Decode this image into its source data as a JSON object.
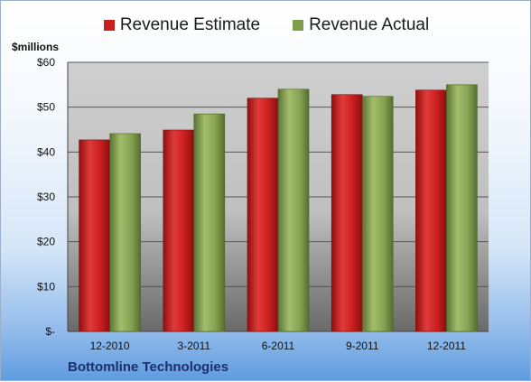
{
  "chart_data": {
    "type": "bar",
    "title": "",
    "unit_label": "$millions",
    "categories": [
      "12-2010",
      "3-2011",
      "6-2011",
      "9-2011",
      "12-2011"
    ],
    "series": [
      {
        "name": "Revenue Estimate",
        "values": [
          42.7,
          44.9,
          52.0,
          52.8,
          53.8
        ],
        "color": "#c81e1e"
      },
      {
        "name": "Revenue Actual",
        "values": [
          44.1,
          48.5,
          54.0,
          52.4,
          55.0
        ],
        "color": "#7f9d4a"
      }
    ],
    "y_ticks": [
      {
        "value": 0,
        "label": "$-"
      },
      {
        "value": 10,
        "label": "$10"
      },
      {
        "value": 20,
        "label": "$20"
      },
      {
        "value": 30,
        "label": "$30"
      },
      {
        "value": 40,
        "label": "$40"
      },
      {
        "value": 50,
        "label": "$50"
      },
      {
        "value": 60,
        "label": "$60"
      }
    ],
    "ylim": [
      0,
      60
    ],
    "grid": true,
    "legend_position": "top-center",
    "footer": "Bottomline Technologies"
  }
}
